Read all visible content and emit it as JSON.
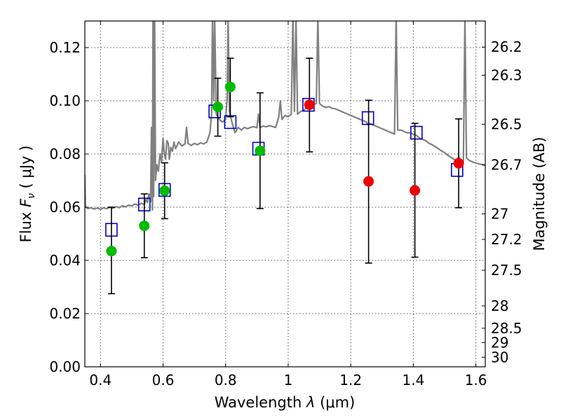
{
  "chart_data": {
    "type": "scatter",
    "xlabel_prefix": "Wavelength",
    "xlabel_symbol": "λ",
    "xlabel_unit": "(μm)",
    "ylabel_prefix": "Flux",
    "ylabel_symbol": "F",
    "ylabel_subscript": "ν",
    "ylabel_unit": "( μJy )",
    "y2label": "Magnitude (AB)",
    "xlim": [
      0.35,
      1.63
    ],
    "ylim": [
      0.0,
      0.13
    ],
    "xticks": [
      0.4,
      0.6,
      0.8,
      1.0,
      1.2,
      1.4,
      1.6
    ],
    "xtick_labels": [
      "0.4",
      "0.6",
      "0.8",
      "1",
      "1.2",
      "1.4",
      "1.6"
    ],
    "yticks": [
      0.0,
      0.02,
      0.04,
      0.06,
      0.08,
      0.1,
      0.12
    ],
    "ytick_labels": [
      "0.00",
      "0.02",
      "0.04",
      "0.06",
      "0.08",
      "0.10",
      "0.12"
    ],
    "magnitude_ticks": [
      {
        "label": "26.2",
        "flux": 0.1202
      },
      {
        "label": "26.3",
        "flux": 0.1096
      },
      {
        "label": "26.5",
        "flux": 0.0912
      },
      {
        "label": "26.7",
        "flux": 0.0759
      },
      {
        "label": "27",
        "flux": 0.0575
      },
      {
        "label": "27.2",
        "flux": 0.0479
      },
      {
        "label": "27.5",
        "flux": 0.0363
      },
      {
        "label": "28",
        "flux": 0.0229
      },
      {
        "label": "28.5",
        "flux": 0.0145
      },
      {
        "label": "29",
        "flux": 0.0091
      },
      {
        "label": "30",
        "flux": 0.0036
      }
    ],
    "grid": true,
    "colors": {
      "template": "#808080",
      "model_box": "#0000cc",
      "green": "#00bb00",
      "red": "#ee0000",
      "errorbar": "#000000"
    },
    "model_photometry": [
      {
        "x": 0.435,
        "y": 0.0515
      },
      {
        "x": 0.54,
        "y": 0.061
      },
      {
        "x": 0.605,
        "y": 0.0665
      },
      {
        "x": 0.765,
        "y": 0.096
      },
      {
        "x": 0.815,
        "y": 0.092
      },
      {
        "x": 0.905,
        "y": 0.082
      },
      {
        "x": 1.065,
        "y": 0.0985
      },
      {
        "x": 1.255,
        "y": 0.0935
      },
      {
        "x": 1.41,
        "y": 0.088
      },
      {
        "x": 1.54,
        "y": 0.074
      }
    ],
    "observed_photometry": [
      {
        "x": 0.435,
        "y": 0.0435,
        "lo": 0.0275,
        "hi": 0.06,
        "color": "green"
      },
      {
        "x": 0.54,
        "y": 0.053,
        "lo": 0.041,
        "hi": 0.065,
        "color": "green"
      },
      {
        "x": 0.605,
        "y": 0.0662,
        "lo": 0.0557,
        "hi": 0.0767,
        "color": "green"
      },
      {
        "x": 0.775,
        "y": 0.0977,
        "lo": 0.0867,
        "hi": 0.1085,
        "color": "green"
      },
      {
        "x": 0.815,
        "y": 0.1052,
        "lo": 0.094,
        "hi": 0.116,
        "color": "green"
      },
      {
        "x": 0.91,
        "y": 0.0812,
        "lo": 0.0595,
        "hi": 0.103,
        "color": "green"
      },
      {
        "x": 1.068,
        "y": 0.0985,
        "lo": 0.0808,
        "hi": 0.116,
        "color": "red"
      },
      {
        "x": 1.257,
        "y": 0.0697,
        "lo": 0.039,
        "hi": 0.1002,
        "color": "red"
      },
      {
        "x": 1.405,
        "y": 0.0663,
        "lo": 0.0412,
        "hi": 0.0915,
        "color": "red"
      },
      {
        "x": 1.545,
        "y": 0.0765,
        "lo": 0.0598,
        "hi": 0.0932,
        "color": "red"
      }
    ],
    "template_spectrum": [
      [
        0.35,
        0.072
      ],
      [
        0.352,
        0.06
      ],
      [
        0.36,
        0.0595
      ],
      [
        0.37,
        0.0598
      ],
      [
        0.38,
        0.0593
      ],
      [
        0.39,
        0.0597
      ],
      [
        0.4,
        0.0592
      ],
      [
        0.41,
        0.0598
      ],
      [
        0.42,
        0.0594
      ],
      [
        0.43,
        0.06
      ],
      [
        0.44,
        0.0596
      ],
      [
        0.45,
        0.0602
      ],
      [
        0.46,
        0.0598
      ],
      [
        0.47,
        0.0605
      ],
      [
        0.48,
        0.0601
      ],
      [
        0.49,
        0.0608
      ],
      [
        0.5,
        0.0605
      ],
      [
        0.51,
        0.0612
      ],
      [
        0.52,
        0.0607
      ],
      [
        0.53,
        0.0615
      ],
      [
        0.54,
        0.061
      ],
      [
        0.545,
        0.063
      ],
      [
        0.55,
        0.0618
      ],
      [
        0.555,
        0.065
      ],
      [
        0.56,
        0.062
      ],
      [
        0.563,
        0.09
      ],
      [
        0.566,
        0.059
      ],
      [
        0.568,
        0.132
      ],
      [
        0.57,
        0.064
      ],
      [
        0.573,
        0.132
      ],
      [
        0.576,
        0.07
      ],
      [
        0.58,
        0.076
      ],
      [
        0.585,
        0.0735
      ],
      [
        0.59,
        0.08
      ],
      [
        0.595,
        0.077
      ],
      [
        0.6,
        0.086
      ],
      [
        0.604,
        0.08
      ],
      [
        0.608,
        0.078
      ],
      [
        0.612,
        0.085
      ],
      [
        0.617,
        0.084
      ],
      [
        0.62,
        0.078
      ],
      [
        0.625,
        0.0825
      ],
      [
        0.63,
        0.081
      ],
      [
        0.635,
        0.0845
      ],
      [
        0.64,
        0.082
      ],
      [
        0.65,
        0.0845
      ],
      [
        0.66,
        0.083
      ],
      [
        0.67,
        0.0838
      ],
      [
        0.675,
        0.09
      ],
      [
        0.68,
        0.084
      ],
      [
        0.69,
        0.0832
      ],
      [
        0.7,
        0.084
      ],
      [
        0.71,
        0.0835
      ],
      [
        0.72,
        0.0842
      ],
      [
        0.73,
        0.0838
      ],
      [
        0.74,
        0.0845
      ],
      [
        0.75,
        0.088
      ],
      [
        0.755,
        0.095
      ],
      [
        0.758,
        0.132
      ],
      [
        0.762,
        0.1
      ],
      [
        0.765,
        0.132
      ],
      [
        0.77,
        0.095
      ],
      [
        0.78,
        0.093
      ],
      [
        0.79,
        0.092
      ],
      [
        0.8,
        0.093
      ],
      [
        0.805,
        0.101
      ],
      [
        0.808,
        0.132
      ],
      [
        0.812,
        0.096
      ],
      [
        0.82,
        0.092
      ],
      [
        0.83,
        0.088
      ],
      [
        0.84,
        0.09
      ],
      [
        0.85,
        0.089
      ],
      [
        0.86,
        0.09
      ],
      [
        0.87,
        0.0895
      ],
      [
        0.88,
        0.09
      ],
      [
        0.89,
        0.0903
      ],
      [
        0.9,
        0.0899
      ],
      [
        0.905,
        0.095
      ],
      [
        0.91,
        0.09
      ],
      [
        0.92,
        0.0905
      ],
      [
        0.93,
        0.0902
      ],
      [
        0.94,
        0.0907
      ],
      [
        0.95,
        0.0903
      ],
      [
        0.96,
        0.09
      ],
      [
        0.97,
        0.094
      ],
      [
        0.975,
        0.1
      ],
      [
        0.98,
        0.093
      ],
      [
        0.99,
        0.0945
      ],
      [
        1.0,
        0.094
      ],
      [
        1.01,
        0.095
      ],
      [
        1.015,
        0.132
      ],
      [
        1.02,
        0.096
      ],
      [
        1.025,
        0.132
      ],
      [
        1.03,
        0.095
      ],
      [
        1.04,
        0.096
      ],
      [
        1.05,
        0.0965
      ],
      [
        1.06,
        0.0975
      ],
      [
        1.07,
        0.098
      ],
      [
        1.08,
        0.0985
      ],
      [
        1.09,
        0.099
      ],
      [
        1.095,
        0.132
      ],
      [
        1.1,
        0.099
      ],
      [
        1.11,
        0.098
      ],
      [
        1.12,
        0.0975
      ],
      [
        1.13,
        0.0978
      ],
      [
        1.14,
        0.0972
      ],
      [
        1.15,
        0.097
      ],
      [
        1.16,
        0.0965
      ],
      [
        1.17,
        0.096
      ],
      [
        1.18,
        0.0955
      ],
      [
        1.19,
        0.095
      ],
      [
        1.2,
        0.0945
      ],
      [
        1.21,
        0.094
      ],
      [
        1.22,
        0.0935
      ],
      [
        1.23,
        0.093
      ],
      [
        1.24,
        0.0925
      ],
      [
        1.25,
        0.092
      ],
      [
        1.255,
        0.091
      ],
      [
        1.26,
        0.0915
      ],
      [
        1.27,
        0.091
      ],
      [
        1.28,
        0.0905
      ],
      [
        1.29,
        0.09
      ],
      [
        1.3,
        0.0895
      ],
      [
        1.31,
        0.089
      ],
      [
        1.32,
        0.0885
      ],
      [
        1.33,
        0.088
      ],
      [
        1.34,
        0.0875
      ],
      [
        1.345,
        0.132
      ],
      [
        1.35,
        0.089
      ],
      [
        1.36,
        0.089
      ],
      [
        1.37,
        0.0885
      ],
      [
        1.38,
        0.088
      ],
      [
        1.39,
        0.088
      ],
      [
        1.4,
        0.0875
      ],
      [
        1.41,
        0.087
      ],
      [
        1.42,
        0.086
      ],
      [
        1.43,
        0.0855
      ],
      [
        1.44,
        0.085
      ],
      [
        1.45,
        0.084
      ],
      [
        1.46,
        0.0835
      ],
      [
        1.47,
        0.0828
      ],
      [
        1.48,
        0.082
      ],
      [
        1.49,
        0.0812
      ],
      [
        1.5,
        0.0805
      ],
      [
        1.51,
        0.0795
      ],
      [
        1.52,
        0.0788
      ],
      [
        1.53,
        0.078
      ],
      [
        1.54,
        0.0775
      ],
      [
        1.545,
        0.079
      ],
      [
        1.55,
        0.0778
      ],
      [
        1.56,
        0.077
      ],
      [
        1.565,
        0.132
      ],
      [
        1.57,
        0.0785
      ],
      [
        1.58,
        0.0775
      ],
      [
        1.59,
        0.077
      ],
      [
        1.6,
        0.0766
      ],
      [
        1.61,
        0.0763
      ],
      [
        1.62,
        0.076
      ],
      [
        1.63,
        0.0758
      ]
    ]
  }
}
